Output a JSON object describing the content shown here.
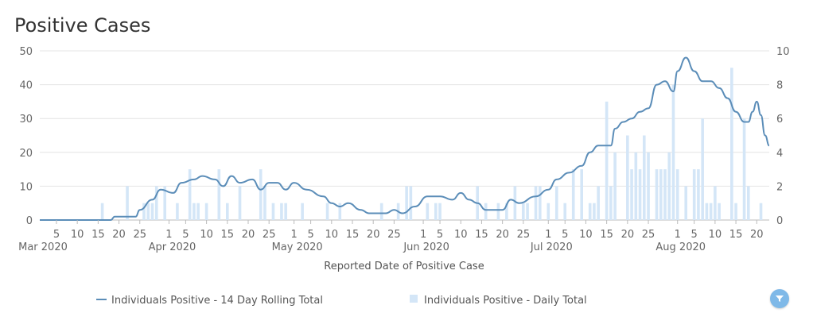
{
  "title": "Positive Cases",
  "chart_data": {
    "type": "line+bar",
    "title": "Positive Cases",
    "xlabel": "Reported Date of Positive Case",
    "left_axis": {
      "ylim": [
        0,
        50
      ],
      "ticks": [
        0,
        10,
        20,
        30,
        40,
        50
      ]
    },
    "right_axis": {
      "ylim": [
        0,
        10
      ],
      "ticks": [
        0,
        2,
        4,
        6,
        8,
        10
      ]
    },
    "x_range": {
      "start": "2020-03-01",
      "end": "2020-08-23"
    },
    "day_ticks": [
      {
        "date": "2020-03-05",
        "label": "5"
      },
      {
        "date": "2020-03-10",
        "label": "10"
      },
      {
        "date": "2020-03-15",
        "label": "15"
      },
      {
        "date": "2020-03-20",
        "label": "20"
      },
      {
        "date": "2020-03-25",
        "label": "25"
      },
      {
        "date": "2020-04-01",
        "label": "1"
      },
      {
        "date": "2020-04-05",
        "label": "5"
      },
      {
        "date": "2020-04-10",
        "label": "10"
      },
      {
        "date": "2020-04-15",
        "label": "15"
      },
      {
        "date": "2020-04-20",
        "label": "20"
      },
      {
        "date": "2020-04-25",
        "label": "25"
      },
      {
        "date": "2020-05-01",
        "label": "1"
      },
      {
        "date": "2020-05-05",
        "label": "5"
      },
      {
        "date": "2020-05-10",
        "label": "10"
      },
      {
        "date": "2020-05-15",
        "label": "15"
      },
      {
        "date": "2020-05-20",
        "label": "20"
      },
      {
        "date": "2020-05-25",
        "label": "25"
      },
      {
        "date": "2020-06-01",
        "label": "1"
      },
      {
        "date": "2020-06-05",
        "label": "5"
      },
      {
        "date": "2020-06-10",
        "label": "10"
      },
      {
        "date": "2020-06-15",
        "label": "15"
      },
      {
        "date": "2020-06-20",
        "label": "20"
      },
      {
        "date": "2020-06-25",
        "label": "25"
      },
      {
        "date": "2020-07-01",
        "label": "1"
      },
      {
        "date": "2020-07-05",
        "label": "5"
      },
      {
        "date": "2020-07-10",
        "label": "10"
      },
      {
        "date": "2020-07-15",
        "label": "15"
      },
      {
        "date": "2020-07-20",
        "label": "20"
      },
      {
        "date": "2020-07-25",
        "label": "25"
      },
      {
        "date": "2020-08-01",
        "label": "1"
      },
      {
        "date": "2020-08-05",
        "label": "5"
      },
      {
        "date": "2020-08-10",
        "label": "10"
      },
      {
        "date": "2020-08-15",
        "label": "15"
      },
      {
        "date": "2020-08-20",
        "label": "20"
      }
    ],
    "month_labels": [
      {
        "date": "2020-03-01",
        "label": "Mar 2020"
      },
      {
        "date": "2020-04-01",
        "label": "Apr 2020"
      },
      {
        "date": "2020-05-01",
        "label": "May 2020"
      },
      {
        "date": "2020-06-01",
        "label": "Jun 2020"
      },
      {
        "date": "2020-07-01",
        "label": "Jul 2020"
      },
      {
        "date": "2020-08-01",
        "label": "Aug 2020"
      }
    ],
    "series": [
      {
        "name": "Individuals Positive - 14 Day Rolling Total",
        "type": "line",
        "axis": "left",
        "color": "#5b8db8",
        "points": [
          [
            "2020-03-01",
            0
          ],
          [
            "2020-03-18",
            0
          ],
          [
            "2020-03-19",
            1
          ],
          [
            "2020-03-24",
            1
          ],
          [
            "2020-03-25",
            3
          ],
          [
            "2020-03-28",
            6
          ],
          [
            "2020-03-30",
            9
          ],
          [
            "2020-04-02",
            8
          ],
          [
            "2020-04-04",
            11
          ],
          [
            "2020-04-07",
            12
          ],
          [
            "2020-04-09",
            13
          ],
          [
            "2020-04-12",
            12
          ],
          [
            "2020-04-14",
            10
          ],
          [
            "2020-04-16",
            13
          ],
          [
            "2020-04-18",
            11
          ],
          [
            "2020-04-21",
            12
          ],
          [
            "2020-04-23",
            9
          ],
          [
            "2020-04-25",
            11
          ],
          [
            "2020-04-27",
            11
          ],
          [
            "2020-04-29",
            9
          ],
          [
            "2020-05-01",
            11
          ],
          [
            "2020-05-04",
            9
          ],
          [
            "2020-05-08",
            7
          ],
          [
            "2020-05-10",
            5
          ],
          [
            "2020-05-12",
            4
          ],
          [
            "2020-05-14",
            5
          ],
          [
            "2020-05-17",
            3
          ],
          [
            "2020-05-19",
            2
          ],
          [
            "2020-05-23",
            2
          ],
          [
            "2020-05-25",
            3
          ],
          [
            "2020-05-27",
            2
          ],
          [
            "2020-05-30",
            4
          ],
          [
            "2020-06-02",
            7
          ],
          [
            "2020-06-05",
            7
          ],
          [
            "2020-06-08",
            6
          ],
          [
            "2020-06-10",
            8
          ],
          [
            "2020-06-12",
            6
          ],
          [
            "2020-06-14",
            5
          ],
          [
            "2020-06-16",
            3
          ],
          [
            "2020-06-20",
            3
          ],
          [
            "2020-06-22",
            6
          ],
          [
            "2020-06-24",
            5
          ],
          [
            "2020-06-28",
            7
          ],
          [
            "2020-07-01",
            9
          ],
          [
            "2020-07-03",
            12
          ],
          [
            "2020-07-06",
            14
          ],
          [
            "2020-07-09",
            16
          ],
          [
            "2020-07-11",
            20
          ],
          [
            "2020-07-13",
            22
          ],
          [
            "2020-07-16",
            22
          ],
          [
            "2020-07-17",
            27
          ],
          [
            "2020-07-19",
            29
          ],
          [
            "2020-07-21",
            30
          ],
          [
            "2020-07-23",
            32
          ],
          [
            "2020-07-25",
            33
          ],
          [
            "2020-07-27",
            40
          ],
          [
            "2020-07-29",
            41
          ],
          [
            "2020-07-31",
            38
          ],
          [
            "2020-08-01",
            44
          ],
          [
            "2020-08-03",
            48
          ],
          [
            "2020-08-05",
            44
          ],
          [
            "2020-08-07",
            41
          ],
          [
            "2020-08-09",
            41
          ],
          [
            "2020-08-11",
            39
          ],
          [
            "2020-08-13",
            36
          ],
          [
            "2020-08-15",
            32
          ],
          [
            "2020-08-17",
            29
          ],
          [
            "2020-08-18",
            29
          ],
          [
            "2020-08-19",
            32
          ],
          [
            "2020-08-20",
            35
          ],
          [
            "2020-08-21",
            31
          ],
          [
            "2020-08-22",
            25
          ],
          [
            "2020-08-23",
            22
          ]
        ]
      },
      {
        "name": "Individuals Positive - Daily Total",
        "type": "bar",
        "axis": "right",
        "color": "#d4e6f7",
        "points": [
          [
            "2020-03-16",
            1
          ],
          [
            "2020-03-22",
            2
          ],
          [
            "2020-03-26",
            1
          ],
          [
            "2020-03-27",
            1
          ],
          [
            "2020-03-28",
            1
          ],
          [
            "2020-03-29",
            2
          ],
          [
            "2020-03-31",
            2
          ],
          [
            "2020-04-03",
            1
          ],
          [
            "2020-04-06",
            3
          ],
          [
            "2020-04-07",
            1
          ],
          [
            "2020-04-08",
            1
          ],
          [
            "2020-04-10",
            1
          ],
          [
            "2020-04-13",
            3
          ],
          [
            "2020-04-15",
            1
          ],
          [
            "2020-04-18",
            2
          ],
          [
            "2020-04-23",
            3
          ],
          [
            "2020-04-24",
            2
          ],
          [
            "2020-04-26",
            1
          ],
          [
            "2020-04-28",
            1
          ],
          [
            "2020-04-29",
            1
          ],
          [
            "2020-05-03",
            1
          ],
          [
            "2020-05-09",
            1
          ],
          [
            "2020-05-12",
            1
          ],
          [
            "2020-05-22",
            1
          ],
          [
            "2020-05-26",
            1
          ],
          [
            "2020-05-28",
            2
          ],
          [
            "2020-05-29",
            2
          ],
          [
            "2020-06-02",
            1
          ],
          [
            "2020-06-04",
            1
          ],
          [
            "2020-06-05",
            1
          ],
          [
            "2020-06-14",
            2
          ],
          [
            "2020-06-16",
            1
          ],
          [
            "2020-06-19",
            1
          ],
          [
            "2020-06-21",
            1
          ],
          [
            "2020-06-23",
            2
          ],
          [
            "2020-06-25",
            1
          ],
          [
            "2020-06-26",
            1
          ],
          [
            "2020-06-28",
            2
          ],
          [
            "2020-06-29",
            2
          ],
          [
            "2020-07-01",
            1
          ],
          [
            "2020-07-03",
            2
          ],
          [
            "2020-07-05",
            1
          ],
          [
            "2020-07-07",
            3
          ],
          [
            "2020-07-09",
            3
          ],
          [
            "2020-07-11",
            1
          ],
          [
            "2020-07-12",
            1
          ],
          [
            "2020-07-13",
            2
          ],
          [
            "2020-07-15",
            7
          ],
          [
            "2020-07-16",
            2
          ],
          [
            "2020-07-17",
            4
          ],
          [
            "2020-07-20",
            5
          ],
          [
            "2020-07-21",
            3
          ],
          [
            "2020-07-22",
            4
          ],
          [
            "2020-07-23",
            3
          ],
          [
            "2020-07-24",
            5
          ],
          [
            "2020-07-25",
            4
          ],
          [
            "2020-07-27",
            3
          ],
          [
            "2020-07-28",
            3
          ],
          [
            "2020-07-29",
            3
          ],
          [
            "2020-07-30",
            4
          ],
          [
            "2020-07-31",
            8
          ],
          [
            "2020-08-01",
            3
          ],
          [
            "2020-08-03",
            2
          ],
          [
            "2020-08-05",
            3
          ],
          [
            "2020-08-06",
            3
          ],
          [
            "2020-08-07",
            6
          ],
          [
            "2020-08-08",
            1
          ],
          [
            "2020-08-09",
            1
          ],
          [
            "2020-08-10",
            2
          ],
          [
            "2020-08-11",
            1
          ],
          [
            "2020-08-14",
            9
          ],
          [
            "2020-08-15",
            1
          ],
          [
            "2020-08-17",
            6
          ],
          [
            "2020-08-18",
            2
          ],
          [
            "2020-08-21",
            1
          ]
        ]
      }
    ],
    "legend": [
      {
        "label": "Individuals Positive - 14 Day Rolling Total",
        "symbol": "line"
      },
      {
        "label": "Individuals Positive - Daily Total",
        "symbol": "square"
      }
    ]
  },
  "filter_button": {
    "icon": "filter-icon"
  },
  "colors": {
    "line": "#5b8db8",
    "bar": "#d4e6f7",
    "grid": "#e4e4e4",
    "filter": "#7fb9e8"
  }
}
